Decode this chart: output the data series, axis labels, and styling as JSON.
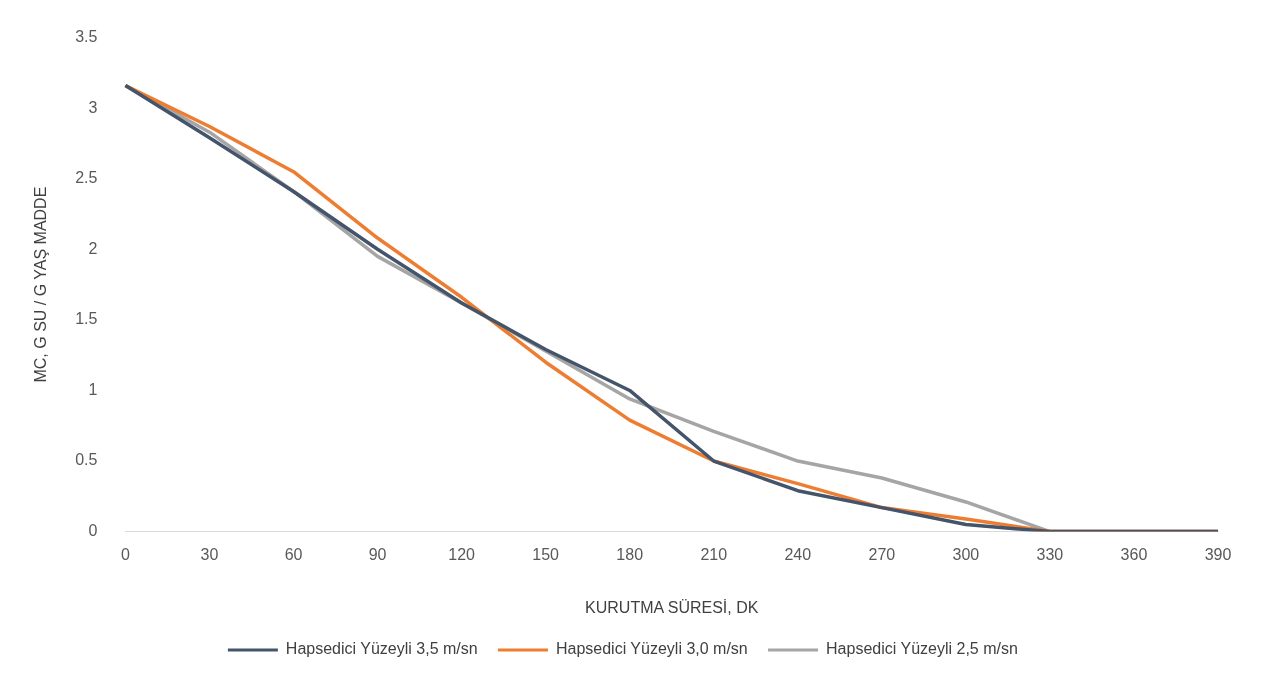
{
  "chart_data": {
    "type": "line",
    "xlabel": "KURUTMA SÜRESİ, DK",
    "ylabel": "MC, G SU / G YAŞ MADDE",
    "categories": [
      "0",
      "30",
      "60",
      "90",
      "120",
      "150",
      "180",
      "210",
      "240",
      "270",
      "300",
      "330",
      "360",
      "390"
    ],
    "series": [
      {
        "name": "Hapsedici Yüzeyli 3,5 m/sn",
        "color": "#44546a",
        "values": [
          3.16,
          2.79,
          2.41,
          2.0,
          1.62,
          1.29,
          1.0,
          0.5,
          0.29,
          0.17,
          0.05,
          0,
          0,
          0
        ]
      },
      {
        "name": "Hapsedici Yüzeyli 3,0 m/sn",
        "color": "#ed7d31",
        "values": [
          3.16,
          2.87,
          2.55,
          2.08,
          1.66,
          1.2,
          0.79,
          0.5,
          0.34,
          0.17,
          0.09,
          0,
          0,
          0
        ]
      },
      {
        "name": "Hapsedici Yüzeyli 2,5 m/sn",
        "color": "#a5a5a5",
        "values": [
          3.16,
          2.83,
          2.41,
          1.95,
          1.62,
          1.28,
          0.94,
          0.71,
          0.5,
          0.38,
          0.21,
          0,
          0,
          0
        ]
      }
    ],
    "ylim": [
      0,
      3.5
    ],
    "yticks": [
      0,
      0.5,
      1,
      1.5,
      2,
      2.5,
      3,
      3.5
    ],
    "grid": false,
    "legend": "bottom",
    "marker": "none",
    "line_style": "solid"
  }
}
